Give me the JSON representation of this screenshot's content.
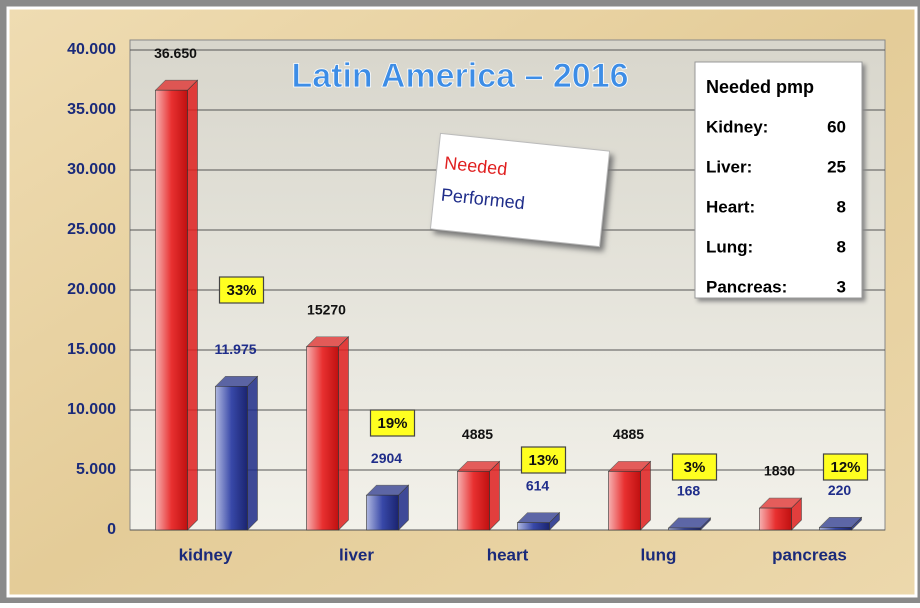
{
  "chart_data": {
    "type": "bar3d",
    "title": "Latin America – 2016",
    "categories": [
      "kidney",
      "liver",
      "heart",
      "lung",
      "pancreas"
    ],
    "series": [
      {
        "name": "Needed",
        "color": "#e02020",
        "values": [
          36650,
          15270,
          4885,
          4885,
          1830
        ],
        "value_labels": [
          "36.650",
          "15270",
          "4885",
          "4885",
          "1830"
        ]
      },
      {
        "name": "Performed",
        "color": "#1f2d8a",
        "values": [
          11975,
          2904,
          614,
          168,
          220
        ],
        "value_labels": [
          "11.975",
          "2904",
          "614",
          "168",
          "220"
        ]
      }
    ],
    "annotations": [
      "33%",
      "19%",
      "13%",
      "3%",
      "12%"
    ],
    "ylim": [
      0,
      40000
    ],
    "yticks": [
      0,
      {
        "value": 5000,
        "label": "5.000"
      },
      {
        "value": 10000,
        "label": "10.000"
      },
      {
        "value": 15000,
        "label": "15.000"
      },
      {
        "value": 20000,
        "label": "20.000"
      },
      {
        "value": 25000,
        "label": "25.000"
      },
      {
        "value": 30000,
        "label": "30.000"
      },
      {
        "value": 35000,
        "label": "35.000"
      },
      {
        "value": 40000,
        "label": "40.000"
      }
    ],
    "grid": true,
    "info_box": {
      "title": "Needed pmp",
      "rows": [
        [
          "Kidney:",
          "60"
        ],
        [
          "Liver:",
          "25"
        ],
        [
          "Heart:",
          "8"
        ],
        [
          "Lung:",
          "8"
        ],
        [
          "Pancreas:",
          "3"
        ]
      ]
    }
  }
}
